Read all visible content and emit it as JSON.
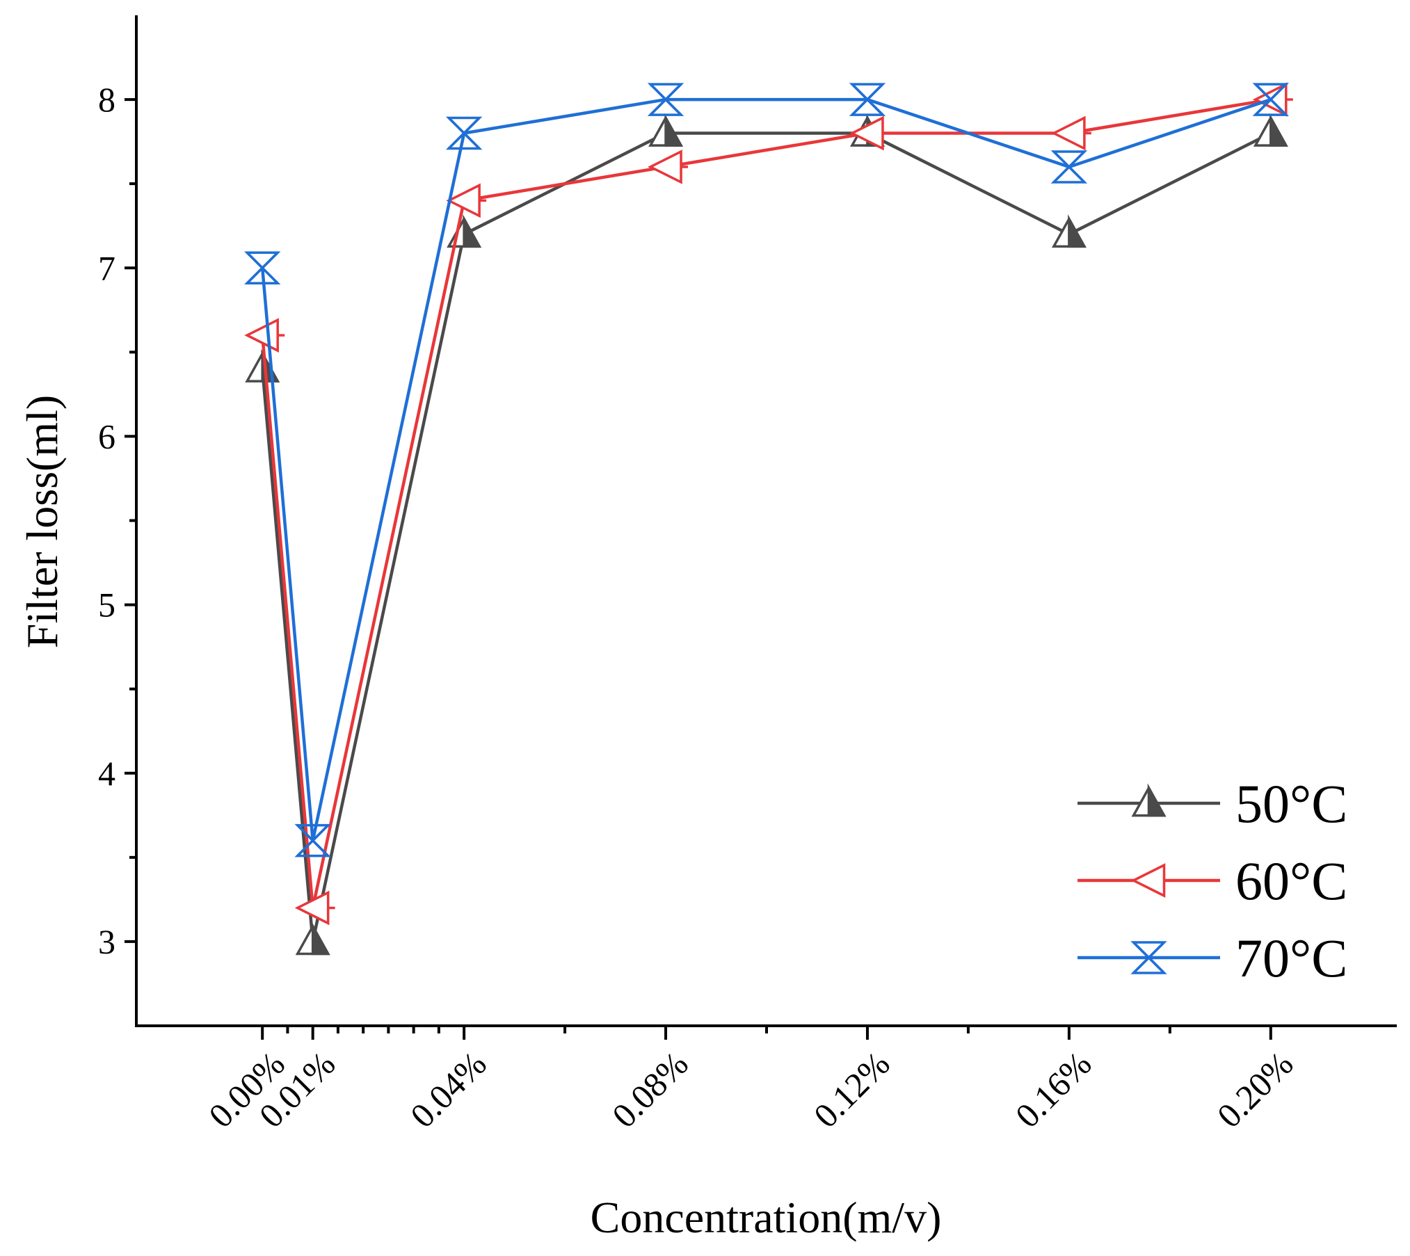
{
  "chart_data": {
    "type": "line",
    "title": "",
    "xlabel": "Concentration(m/v)",
    "ylabel": "Filter loss(ml)",
    "x": [
      0.0,
      0.01,
      0.04,
      0.08,
      0.12,
      0.16,
      0.2
    ],
    "x_tick_labels": [
      "0.00%",
      "0.01%",
      "0.04%",
      "0.08%",
      "0.12%",
      "0.16%",
      "0.20%"
    ],
    "x_minor_ticks": [
      0.005,
      0.015,
      0.02,
      0.025,
      0.03,
      0.035,
      0.06,
      0.1,
      0.14,
      0.18
    ],
    "xlim": [
      -0.025,
      0.225
    ],
    "ylim": [
      2.5,
      8.5
    ],
    "y_ticks": [
      3,
      4,
      5,
      6,
      7,
      8
    ],
    "y_minor_ticks": [
      3.5,
      4.5,
      5.5,
      6.5,
      7.5
    ],
    "grid": false,
    "legend_position": "bottom-right",
    "series": [
      {
        "name": "50°C",
        "color": "#4a4a4a",
        "marker": "triangle-up-half-filled",
        "values": [
          6.4,
          3.0,
          7.2,
          7.8,
          7.8,
          7.2,
          7.8
        ]
      },
      {
        "name": "60°C",
        "color": "#e8373a",
        "marker": "triangle-left-cross",
        "values": [
          6.6,
          3.2,
          7.4,
          7.6,
          7.8,
          7.8,
          8.0
        ]
      },
      {
        "name": "70°C",
        "color": "#1f6fd6",
        "marker": "hourglass-x",
        "values": [
          7.0,
          3.6,
          7.8,
          8.0,
          8.0,
          7.6,
          8.0
        ]
      }
    ]
  }
}
